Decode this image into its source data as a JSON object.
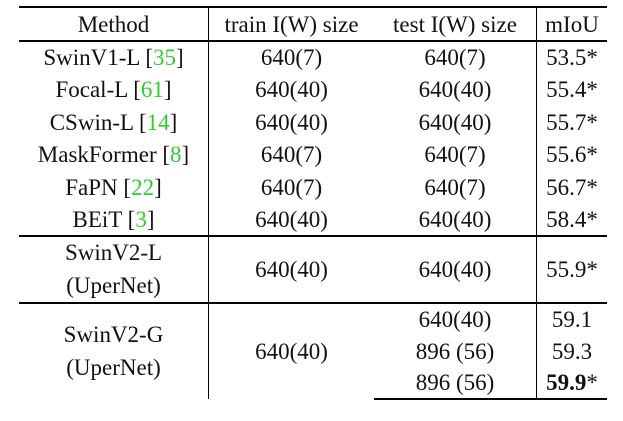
{
  "table": {
    "headers": [
      "Method",
      "train I(W) size",
      "test I(W) size",
      "mIoU"
    ],
    "rows": [
      {
        "method": "SwinV1-L",
        "ref": "35",
        "train": "640(7)",
        "test": "640(7)",
        "miou": "53.5*"
      },
      {
        "method": "Focal-L",
        "ref": "61",
        "train": "640(40)",
        "test": "640(40)",
        "miou": "55.4*"
      },
      {
        "method": "CSwin-L",
        "ref": "14",
        "train": "640(40)",
        "test": "640(40)",
        "miou": "55.7*"
      },
      {
        "method": "MaskFormer",
        "ref": "8",
        "train": "640(7)",
        "test": "640(7)",
        "miou": "55.6*"
      },
      {
        "method": "FaPN",
        "ref": "22",
        "train": "640(7)",
        "test": "640(7)",
        "miou": "56.7*"
      },
      {
        "method": "BEiT",
        "ref": "3",
        "train": "640(40)",
        "test": "640(40)",
        "miou": "58.4*"
      }
    ],
    "swinv2_l": {
      "method_line1": "SwinV2-L",
      "method_line2": "(UperNet)",
      "train": "640(40)",
      "test": "640(40)",
      "miou": "55.9*"
    },
    "swinv2_g": {
      "method_line1": "SwinV2-G",
      "method_line2": "(UperNet)",
      "train": "640(40)",
      "tests": [
        "640(40)",
        "896 (56)",
        "896 (56)"
      ],
      "mious": [
        "59.1",
        "59.3",
        "59.9"
      ],
      "best_marker": "*"
    }
  }
}
